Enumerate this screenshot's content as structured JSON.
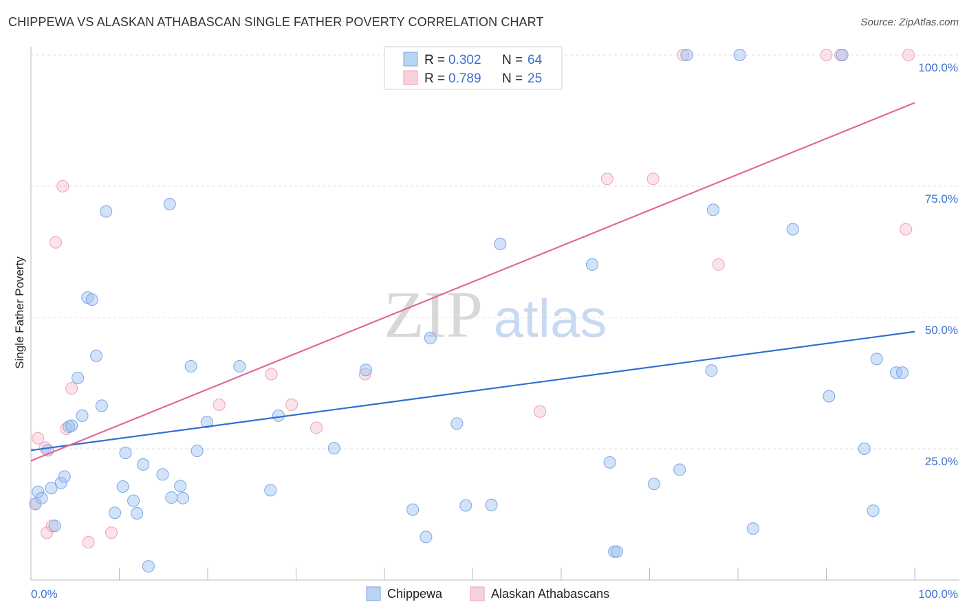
{
  "header": {
    "title": "CHIPPEWA VS ALASKAN ATHABASCAN SINGLE FATHER POVERTY CORRELATION CHART",
    "source": "Source: ZipAtlas.com"
  },
  "watermark": {
    "zip": "ZIP",
    "atlas": "atlas"
  },
  "legend": {
    "rows": [
      {
        "r_label": "R = ",
        "r_value": "0.302",
        "n_label": "N = ",
        "n_value": "64",
        "color": "#9bbff0"
      },
      {
        "r_label": "R = ",
        "r_value": "0.789",
        "n_label": "N = ",
        "n_value": "25",
        "color": "#f5b8cb"
      }
    ]
  },
  "bottom_legend": [
    {
      "label": "Chippewa",
      "color": "#9bbff0"
    },
    {
      "label": "Alaskan Athabascans",
      "color": "#f5b8cb"
    }
  ],
  "chart_data": {
    "type": "scatter",
    "title": "CHIPPEWA VS ALASKAN ATHABASCAN SINGLE FATHER POVERTY CORRELATION CHART",
    "xlabel": "",
    "ylabel": "Single Father Poverty",
    "xlim": [
      0,
      100
    ],
    "ylim": [
      0,
      100
    ],
    "x_tick_labels": [
      "0.0%",
      "100.0%"
    ],
    "y_tick_values": [
      25,
      50,
      75,
      100
    ],
    "y_tick_labels": [
      "25.0%",
      "50.0%",
      "75.0%",
      "100.0%"
    ],
    "grid": true,
    "legend_position": "top-center",
    "series": [
      {
        "name": "Chippewa",
        "color": "#9bbff0",
        "line_color": "#2f6fd0",
        "trend": {
          "x": [
            0,
            100
          ],
          "y": [
            24.7,
            47.3
          ]
        },
        "points": [
          [
            0.5,
            14.5
          ],
          [
            0.8,
            16.8
          ],
          [
            1.2,
            15.6
          ],
          [
            1.9,
            24.7
          ],
          [
            2.3,
            17.5
          ],
          [
            2.7,
            10.3
          ],
          [
            3.4,
            18.5
          ],
          [
            3.8,
            19.7
          ],
          [
            4.3,
            29.2
          ],
          [
            4.6,
            29.4
          ],
          [
            5.3,
            38.5
          ],
          [
            5.8,
            31.3
          ],
          [
            6.4,
            53.8
          ],
          [
            6.9,
            53.4
          ],
          [
            7.4,
            42.7
          ],
          [
            8.0,
            33.2
          ],
          [
            8.5,
            70.2
          ],
          [
            9.5,
            12.8
          ],
          [
            10.4,
            17.8
          ],
          [
            10.7,
            24.2
          ],
          [
            11.6,
            15.1
          ],
          [
            12.0,
            12.7
          ],
          [
            12.7,
            22.0
          ],
          [
            13.3,
            2.6
          ],
          [
            14.9,
            20.1
          ],
          [
            15.7,
            71.6
          ],
          [
            15.9,
            15.7
          ],
          [
            16.9,
            17.9
          ],
          [
            17.2,
            15.6
          ],
          [
            18.1,
            40.7
          ],
          [
            18.8,
            24.6
          ],
          [
            19.9,
            30.1
          ],
          [
            23.6,
            40.7
          ],
          [
            27.1,
            17.1
          ],
          [
            28.0,
            31.3
          ],
          [
            34.3,
            25.1
          ],
          [
            37.9,
            40.0
          ],
          [
            43.2,
            13.4
          ],
          [
            44.7,
            8.2
          ],
          [
            45.2,
            46.1
          ],
          [
            45.8,
            100
          ],
          [
            48.2,
            29.8
          ],
          [
            49.2,
            14.2
          ],
          [
            52.1,
            14.3
          ],
          [
            53.1,
            64.0
          ],
          [
            63.5,
            60.1
          ],
          [
            65.5,
            22.4
          ],
          [
            66.0,
            5.4
          ],
          [
            66.3,
            5.4
          ],
          [
            70.5,
            18.3
          ],
          [
            73.4,
            21.0
          ],
          [
            74.2,
            100
          ],
          [
            77.0,
            39.9
          ],
          [
            77.2,
            70.5
          ],
          [
            80.2,
            100
          ],
          [
            81.7,
            9.8
          ],
          [
            86.2,
            66.8
          ],
          [
            90.3,
            35.0
          ],
          [
            91.8,
            100
          ],
          [
            94.3,
            25.0
          ],
          [
            95.3,
            13.2
          ],
          [
            95.7,
            42.1
          ],
          [
            97.9,
            39.5
          ],
          [
            98.6,
            39.5
          ]
        ]
      },
      {
        "name": "Alaskan Athabascans",
        "color": "#f5b8cb",
        "line_color": "#e06a94",
        "trend": {
          "x": [
            0,
            100
          ],
          "y": [
            22.7,
            90.9
          ]
        },
        "points": [
          [
            0.5,
            14.5
          ],
          [
            0.8,
            27.0
          ],
          [
            1.6,
            25.2
          ],
          [
            1.8,
            9.0
          ],
          [
            2.4,
            10.3
          ],
          [
            2.8,
            64.3
          ],
          [
            3.6,
            75.0
          ],
          [
            4.0,
            28.8
          ],
          [
            4.6,
            36.5
          ],
          [
            6.5,
            7.2
          ],
          [
            9.1,
            9.0
          ],
          [
            21.3,
            33.4
          ],
          [
            27.2,
            39.2
          ],
          [
            29.5,
            33.4
          ],
          [
            32.3,
            29.0
          ],
          [
            37.8,
            39.2
          ],
          [
            57.6,
            32.1
          ],
          [
            65.2,
            76.4
          ],
          [
            70.4,
            76.4
          ],
          [
            73.8,
            100
          ],
          [
            77.8,
            60.1
          ],
          [
            90.0,
            100
          ],
          [
            91.6,
            100
          ],
          [
            99.0,
            66.8
          ],
          [
            99.3,
            100
          ]
        ]
      }
    ]
  }
}
